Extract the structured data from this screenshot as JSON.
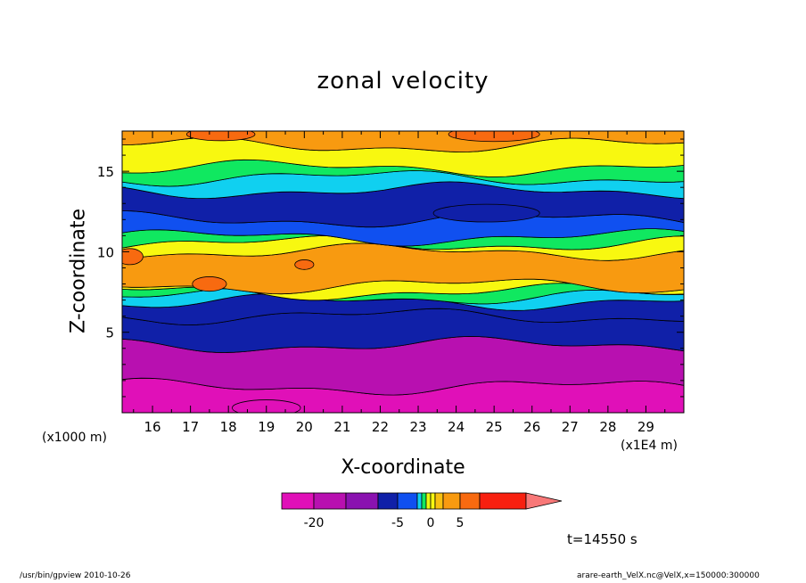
{
  "chart_data": {
    "type": "contour",
    "title": "zonal velocity",
    "xlabel": "X-coordinate",
    "ylabel": "Z-coordinate",
    "x_unit_label": "(x1E4 m)",
    "y_unit_label": "(x1000 m)",
    "xlim": [
      15.2,
      30.0
    ],
    "ylim": [
      0.0,
      17.5
    ],
    "x_ticks": [
      16,
      17,
      18,
      19,
      20,
      21,
      22,
      23,
      24,
      25,
      26,
      27,
      28,
      29
    ],
    "y_ticks": [
      5,
      10,
      15
    ],
    "time_label": "t=14550 s",
    "colorbar": {
      "levels": [
        -25,
        -20,
        -15,
        -10,
        -5,
        -3,
        -2,
        -1,
        0,
        1,
        2,
        5,
        10,
        15
      ],
      "colors": [
        "#e010b8",
        "#b810b0",
        "#8a12b0",
        "#1020a8",
        "#1050f0",
        "#10d0f0",
        "#10e860",
        "#e8f810",
        "#f8f810",
        "#f8c010",
        "#f89a10",
        "#f86a10",
        "#f82010",
        "#f87878"
      ],
      "tick_labels": [
        "-20",
        "-5",
        "0",
        "5"
      ],
      "tick_values": [
        -20,
        -5,
        0,
        5
      ]
    },
    "bands": [
      {
        "from_z": 0.0,
        "to_z": 1.6,
        "value": -22
      },
      {
        "from_z": 1.6,
        "to_z": 4.2,
        "value": -16
      },
      {
        "from_z": 4.2,
        "to_z": 6.0,
        "value": -10
      },
      {
        "from_z": 6.0,
        "to_z": 6.9,
        "value": -6
      },
      {
        "from_z": 6.9,
        "to_z": 7.2,
        "value": -2.5
      },
      {
        "from_z": 7.2,
        "to_z": 7.5,
        "value": -1.5
      },
      {
        "from_z": 7.5,
        "to_z": 7.9,
        "value": 0.5
      },
      {
        "from_z": 7.9,
        "to_z": 10.0,
        "value": 3
      },
      {
        "from_z": 10.0,
        "to_z": 10.5,
        "value": 0.5
      },
      {
        "from_z": 10.5,
        "to_z": 10.9,
        "value": -1.5
      },
      {
        "from_z": 10.9,
        "to_z": 12.0,
        "value": -4
      },
      {
        "from_z": 12.0,
        "to_z": 13.8,
        "value": -6
      },
      {
        "from_z": 13.8,
        "to_z": 14.6,
        "value": -2.5
      },
      {
        "from_z": 14.6,
        "to_z": 15.2,
        "value": -1.5
      },
      {
        "from_z": 15.2,
        "to_z": 16.6,
        "value": 0.5
      },
      {
        "from_z": 16.6,
        "to_z": 17.5,
        "value": 3
      }
    ],
    "blobs": [
      {
        "x": 24.8,
        "z": 12.4,
        "rx": 1.4,
        "rz": 0.55,
        "value": -10
      },
      {
        "x": 17.5,
        "z": 8.0,
        "rx": 0.45,
        "rz": 0.45,
        "value": 8
      },
      {
        "x": 20.0,
        "z": 9.2,
        "rx": 0.25,
        "rz": 0.3,
        "value": 8
      },
      {
        "x": 15.4,
        "z": 9.7,
        "rx": 0.35,
        "rz": 0.5,
        "value": 8
      },
      {
        "x": 19.0,
        "z": 0.3,
        "rx": 0.9,
        "rz": 0.5,
        "value": -27
      },
      {
        "x": 17.8,
        "z": 17.3,
        "rx": 0.9,
        "rz": 0.4,
        "value": 8
      },
      {
        "x": 25.0,
        "z": 17.3,
        "rx": 1.2,
        "rz": 0.45,
        "value": 8
      }
    ]
  },
  "footer": {
    "left": "/usr/bin/gpview   2010-10-26",
    "right": "arare-earth_VelX.nc@VelX,x=150000:300000"
  }
}
